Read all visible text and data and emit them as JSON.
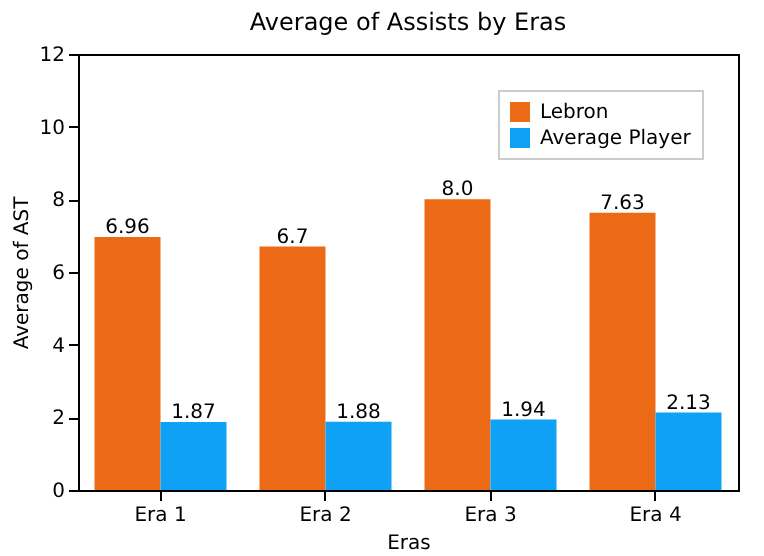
{
  "chart_data": {
    "type": "bar",
    "title": "Average of Assists by Eras",
    "xlabel": "Eras",
    "ylabel": "Average of AST",
    "categories": [
      "Era 1",
      "Era 2",
      "Era 3",
      "Era 4"
    ],
    "series": [
      {
        "name": "Lebron",
        "color": "#ec6a15",
        "values": [
          6.96,
          6.7,
          8.0,
          7.63
        ],
        "value_labels": [
          "6.96",
          "6.7",
          "8.0",
          "7.63"
        ]
      },
      {
        "name": "Average Player",
        "color": "#0ea1f5",
        "values": [
          1.87,
          1.88,
          1.94,
          2.13
        ],
        "value_labels": [
          "1.87",
          "1.88",
          "1.94",
          "2.13"
        ]
      }
    ],
    "ylim": [
      0,
      12
    ],
    "yticks": [
      0,
      2,
      4,
      6,
      8,
      10,
      12
    ],
    "legend": "top right",
    "grid": false
  }
}
